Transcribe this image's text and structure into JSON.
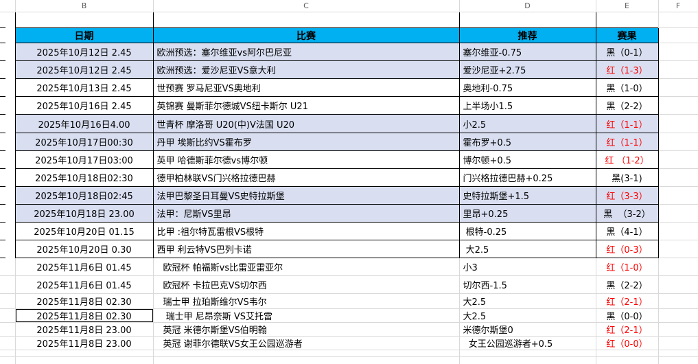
{
  "sheet": {
    "column_letters": [
      "B",
      "C",
      "D",
      "E",
      "F"
    ],
    "colors": {
      "header_bg": "#00B0F0",
      "shade_row_bg": "#D9DFF1",
      "result_red": "#FF0000",
      "gridline": "#D9D9D9"
    }
  },
  "table": {
    "headers": {
      "date": "日期",
      "match": "比赛",
      "tip": "推荐",
      "result": "赛果"
    },
    "rows": [
      {
        "date": "2025年10月12日 2.45",
        "match": "欧洲预选：塞尔维亚vs阿尔巴尼亚",
        "tip": "塞尔维亚-0.75",
        "result": "黑（0-1）",
        "result_color": "black",
        "shaded": true,
        "bordered": true,
        "selected": false
      },
      {
        "date": "2025年10月12日 2.45",
        "match": "欧洲预选：爱沙尼亚VS意大利",
        "tip": "爱沙尼亚+2.75",
        "result": "红（1-3）",
        "result_color": "red",
        "shaded": true,
        "bordered": true,
        "selected": false
      },
      {
        "date": "2025年10月13日 2.45",
        "match": "世预赛 罗马尼亚VS奥地利",
        "tip": "奥地利-0.75",
        "result": "黑（1-0）",
        "result_color": "black",
        "shaded": false,
        "bordered": true,
        "selected": false
      },
      {
        "date": "2025年10月16日 2.45",
        "match": "英锦赛 曼斯菲尔德城VS纽卡斯尔 U21",
        "tip": "上半场小1.5",
        "result": "黑（2-2）",
        "result_color": "black",
        "shaded": false,
        "bordered": true,
        "selected": false
      },
      {
        "date": "2025年10月16日4.00",
        "match": "世青杯 摩洛哥 U20(中)V法国 U20",
        "tip": "小2.5",
        "result": "红（1-1）",
        "result_color": "red",
        "shaded": true,
        "bordered": true,
        "selected": false
      },
      {
        "date": "2025年10月17日00:30",
        "match": "丹甲 埃斯比约VS霍布罗",
        "tip": "霍布罗+0.5",
        "result": "红（1-1）",
        "result_color": "red",
        "shaded": true,
        "bordered": true,
        "selected": false
      },
      {
        "date": "2025年10月17日03:00",
        "match": "英甲 哈德斯菲尔德vs博尔顿",
        "tip": "博尔顿+0.5",
        "result": "红 （1-2）",
        "result_color": "red",
        "shaded": false,
        "bordered": true,
        "selected": false
      },
      {
        "date": "2025年10月18日02:30",
        "match": "德甲柏林联VS门兴格拉德巴赫",
        "tip": "门兴格拉德巴赫+0.25",
        "result": "黑(3-1)",
        "result_color": "black",
        "shaded": false,
        "bordered": true,
        "selected": false
      },
      {
        "date": "2025年10月18日02:45",
        "match": "法甲巴黎圣日耳曼VS史特拉斯堡",
        "tip": "史特拉斯堡+1.5",
        "result": "红（3-3）",
        "result_color": "red",
        "shaded": true,
        "bordered": true,
        "selected": false
      },
      {
        "date": "2025年10月18日 23.00",
        "match": "法甲：尼斯VS里昂",
        "tip": "里昂+0.25",
        "result": "黑  （3-2）",
        "result_color": "black",
        "shaded": true,
        "bordered": true,
        "selected": false
      },
      {
        "date": "2025年10月20日 01.15",
        "match": "比甲 :祖尔特瓦雷根VS根特",
        "tip": " 根特-0.25",
        "result": "黑（4-1）",
        "result_color": "black",
        "shaded": false,
        "bordered": true,
        "selected": false
      },
      {
        "date": "2025年10月20日 0.30",
        "match": "西甲 利云特VS巴列卡诺",
        "tip": " 大2.5",
        "result": "红（0-3）",
        "result_color": "red",
        "shaded": false,
        "bordered": true,
        "selected": false
      },
      {
        "date": "2025年11月6日 01.45",
        "match": "欧冠杯 帕福斯vs比雷亚雷亚尔",
        "tip": "小3",
        "result": "红（1-0）",
        "result_color": "red",
        "shaded": false,
        "bordered": false,
        "selected": false
      },
      {
        "date": "2025年11月6日 01.45",
        "match": "欧冠杯 卡拉巴克VS切尔西",
        "tip": "切尔西-1.5",
        "result": "黑（2-2）",
        "result_color": "black",
        "shaded": false,
        "bordered": false,
        "selected": false
      },
      {
        "date": "2025年11月8日 02.30",
        "match": "瑞士甲 拉珀斯维尔VS韦尔",
        "tip": "大2.5",
        "result": "红（2-1）",
        "result_color": "red",
        "shaded": false,
        "bordered": false,
        "selected": false
      },
      {
        "date": "2025年11月8日 02.30",
        "match": " 瑞士甲 尼昂奈斯 VS艾托雷",
        "tip": "大2.5",
        "result": "黑（0-0）",
        "result_color": "black",
        "shaded": false,
        "bordered": false,
        "selected": true
      },
      {
        "date": "2025年11月8日 23.00",
        "match": "英冠 米德尔斯堡VS伯明翰",
        "tip": "米德尔斯堡0",
        "result": "红（2-1）",
        "result_color": "red",
        "shaded": false,
        "bordered": false,
        "selected": false
      },
      {
        "date": "2025年11月8日 23.00",
        "match": "英冠 谢菲尔德联VS女王公园巡游者",
        "tip": "  女王公园巡游者+0.5",
        "result": "红（0-0）",
        "result_color": "red",
        "shaded": false,
        "bordered": false,
        "selected": false
      }
    ]
  }
}
